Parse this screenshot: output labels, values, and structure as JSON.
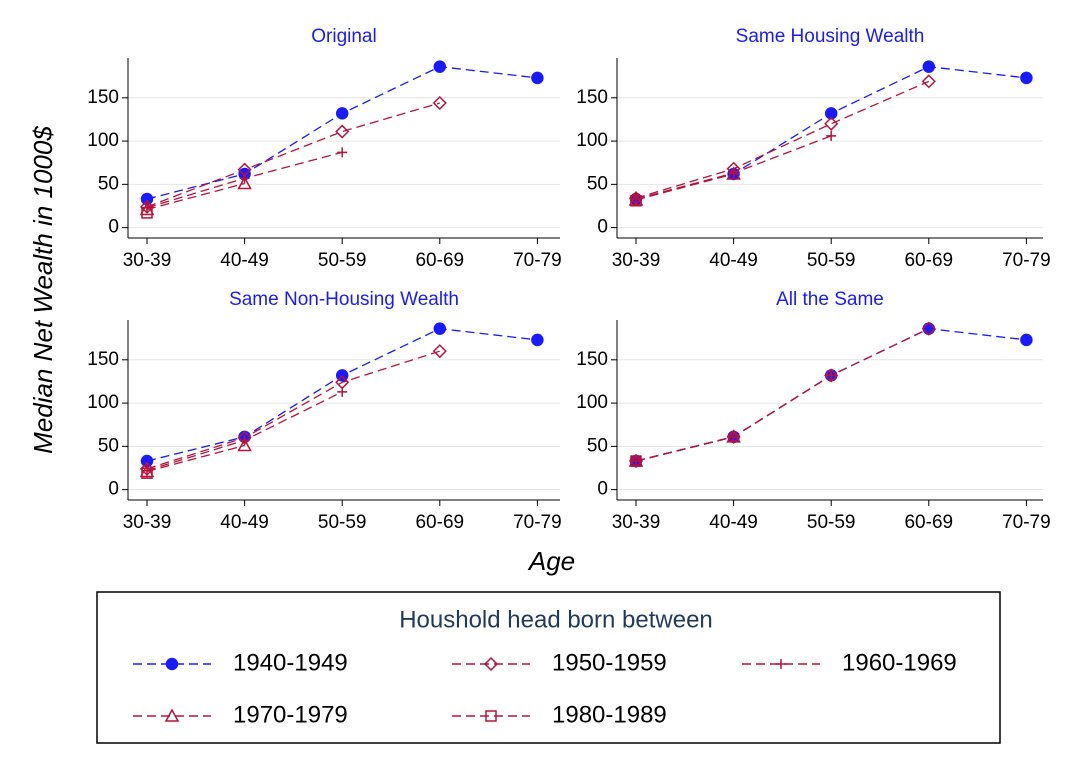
{
  "figure": {
    "y_label": "Median Net Wealth in 1000$",
    "x_label": "Age",
    "legend_title": "Houshold head born between"
  },
  "chart_data": [
    {
      "type": "line",
      "title": "Original",
      "categories": [
        "30-39",
        "40-49",
        "50-59",
        "60-69",
        "70-79"
      ],
      "ylim": [
        -12,
        196
      ],
      "yticks": [
        0,
        50,
        100,
        150
      ],
      "grid": true,
      "series": [
        {
          "name": "1940-1949",
          "color": "#1a1aff",
          "marker": "circle",
          "values": [
            33,
            62,
            132,
            186,
            173
          ]
        },
        {
          "name": "1950-1959",
          "color": "#b8123e",
          "marker": "diamond",
          "values": [
            24,
            67,
            111,
            144,
            null
          ]
        },
        {
          "name": "1960-1969",
          "color": "#b8123e",
          "marker": "plus",
          "values": [
            23,
            57,
            87,
            null,
            null
          ]
        },
        {
          "name": "1970-1979",
          "color": "#b8123e",
          "marker": "triangle",
          "values": [
            21,
            51,
            null,
            null,
            null
          ]
        },
        {
          "name": "1980-1989",
          "color": "#b8123e",
          "marker": "square",
          "values": [
            17,
            null,
            null,
            null,
            null
          ]
        }
      ]
    },
    {
      "type": "line",
      "title": "Same Housing Wealth",
      "categories": [
        "30-39",
        "40-49",
        "50-59",
        "60-69",
        "70-79"
      ],
      "ylim": [
        -12,
        196
      ],
      "yticks": [
        0,
        50,
        100,
        150
      ],
      "grid": true,
      "series": [
        {
          "name": "1940-1949",
          "color": "#1a1aff",
          "marker": "circle",
          "values": [
            33,
            62,
            132,
            186,
            173
          ]
        },
        {
          "name": "1950-1959",
          "color": "#b8123e",
          "marker": "diamond",
          "values": [
            34,
            68,
            120,
            169,
            null
          ]
        },
        {
          "name": "1960-1969",
          "color": "#b8123e",
          "marker": "plus",
          "values": [
            33,
            63,
            106,
            null,
            null
          ]
        },
        {
          "name": "1970-1979",
          "color": "#b8123e",
          "marker": "triangle",
          "values": [
            32,
            62,
            null,
            null,
            null
          ]
        },
        {
          "name": "1980-1989",
          "color": "#b8123e",
          "marker": "square",
          "values": [
            31,
            null,
            null,
            null,
            null
          ]
        }
      ]
    },
    {
      "type": "line",
      "title": "Same Non-Housing Wealth",
      "categories": [
        "30-39",
        "40-49",
        "50-59",
        "60-69",
        "70-79"
      ],
      "ylim": [
        -12,
        196
      ],
      "yticks": [
        0,
        50,
        100,
        150
      ],
      "grid": true,
      "series": [
        {
          "name": "1940-1949",
          "color": "#1a1aff",
          "marker": "circle",
          "values": [
            33,
            61,
            132,
            186,
            173
          ]
        },
        {
          "name": "1950-1959",
          "color": "#b8123e",
          "marker": "diamond",
          "values": [
            24,
            60,
            124,
            160,
            null
          ]
        },
        {
          "name": "1960-1969",
          "color": "#b8123e",
          "marker": "plus",
          "values": [
            22,
            57,
            113,
            null,
            null
          ]
        },
        {
          "name": "1970-1979",
          "color": "#b8123e",
          "marker": "triangle",
          "values": [
            21,
            51,
            null,
            null,
            null
          ]
        },
        {
          "name": "1980-1989",
          "color": "#b8123e",
          "marker": "square",
          "values": [
            19,
            null,
            null,
            null,
            null
          ]
        }
      ]
    },
    {
      "type": "line",
      "title": "All the Same",
      "categories": [
        "30-39",
        "40-49",
        "50-59",
        "60-69",
        "70-79"
      ],
      "ylim": [
        -12,
        196
      ],
      "yticks": [
        0,
        50,
        100,
        150
      ],
      "grid": true,
      "series": [
        {
          "name": "1940-1949",
          "color": "#1a1aff",
          "marker": "circle",
          "values": [
            33,
            61,
            132,
            186,
            173
          ]
        },
        {
          "name": "1950-1959",
          "color": "#b8123e",
          "marker": "diamond",
          "values": [
            33,
            61,
            132,
            186,
            null
          ]
        },
        {
          "name": "1960-1969",
          "color": "#b8123e",
          "marker": "plus",
          "values": [
            33,
            61,
            132,
            null,
            null
          ]
        },
        {
          "name": "1970-1979",
          "color": "#b8123e",
          "marker": "triangle",
          "values": [
            33,
            61,
            null,
            null,
            null
          ]
        },
        {
          "name": "1980-1989",
          "color": "#b8123e",
          "marker": "square",
          "values": [
            33,
            null,
            null,
            null,
            null
          ]
        }
      ]
    }
  ]
}
